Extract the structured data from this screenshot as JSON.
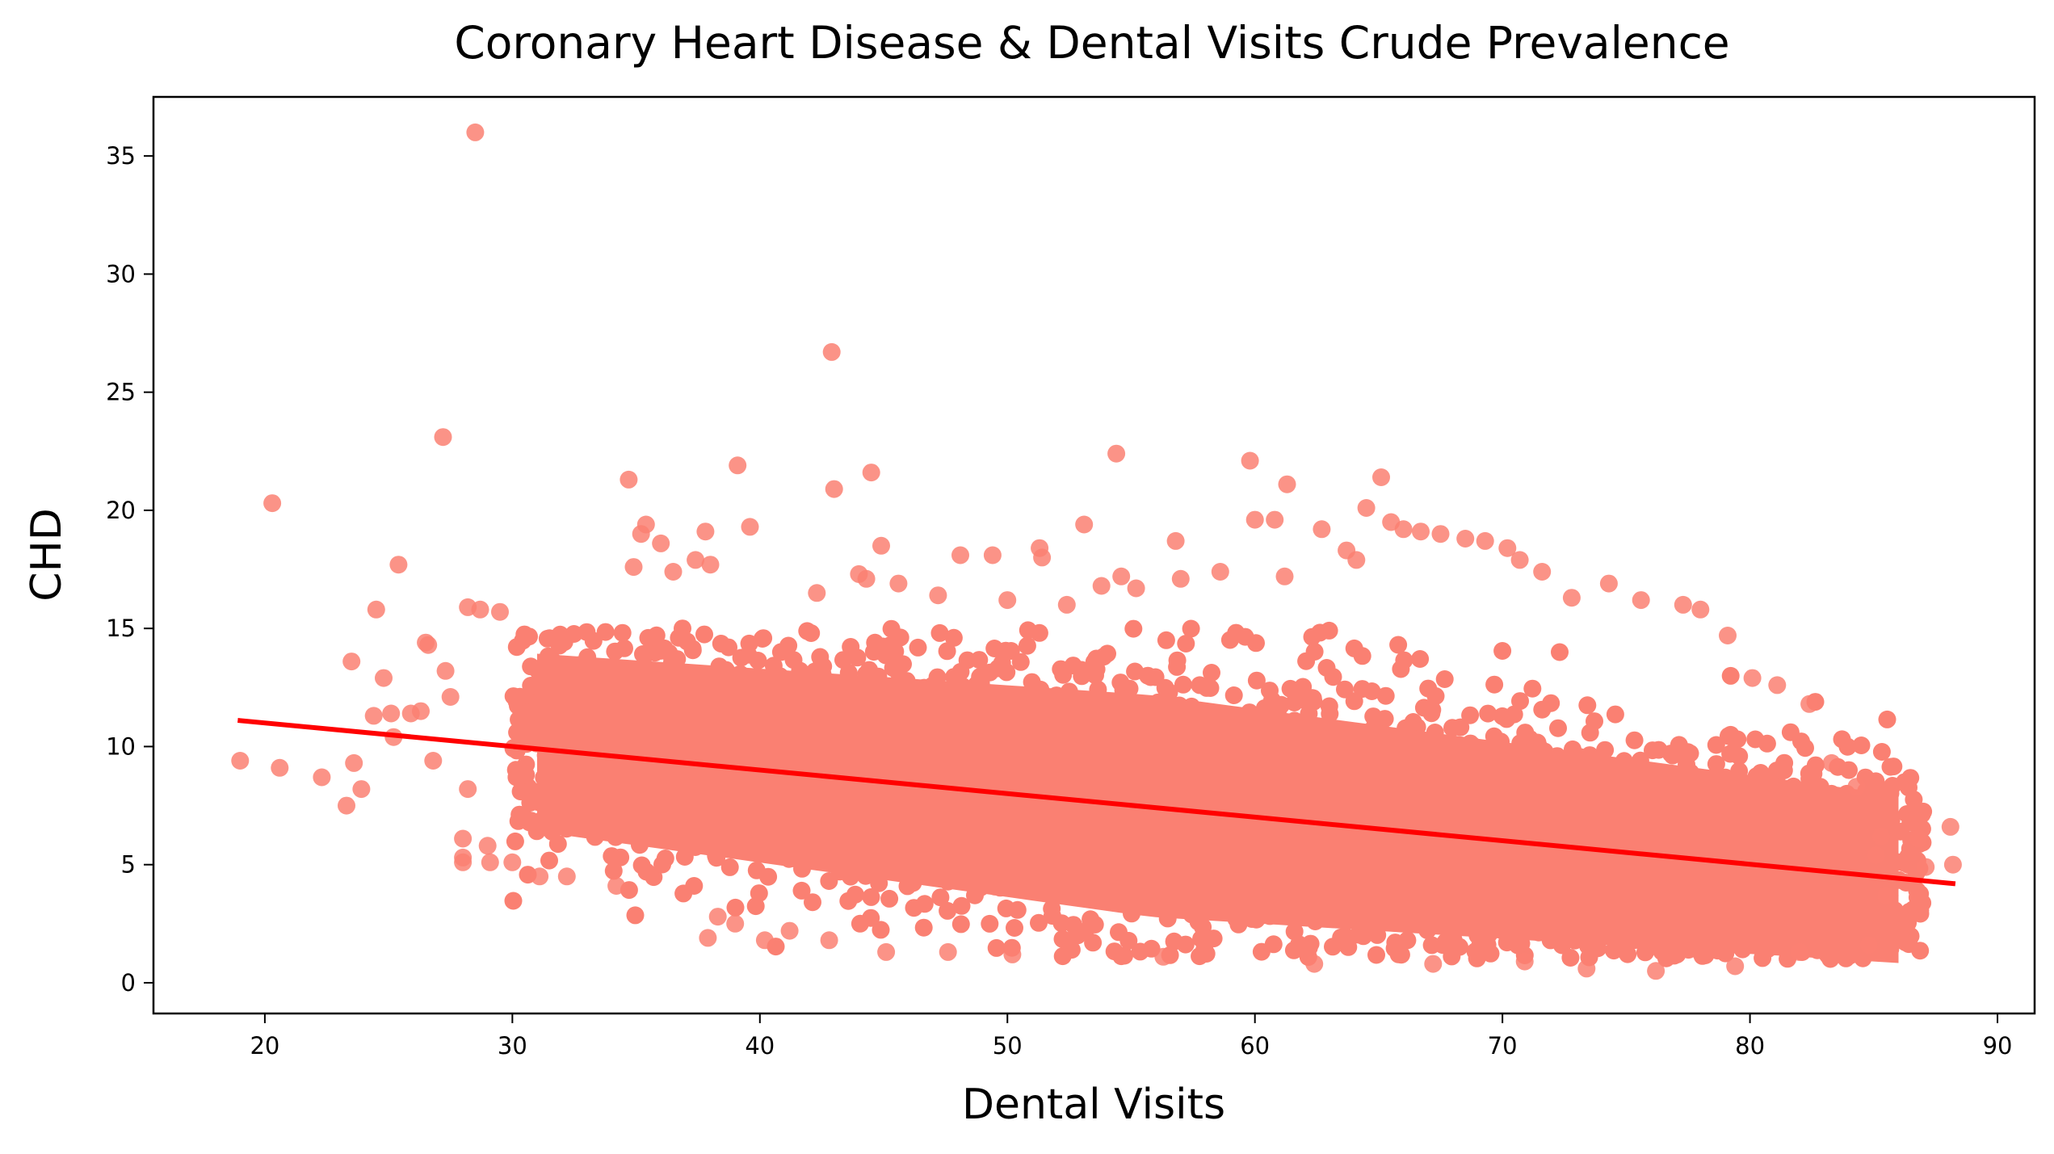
{
  "chart_data": {
    "type": "scatter",
    "title": "Coronary Heart Disease & Dental Visits Crude Prevalence",
    "xlabel": "Dental Visits",
    "ylabel": "CHD",
    "xlim": [
      15.5,
      91.5
    ],
    "ylim": [
      -1.3,
      37.5
    ],
    "xticks": [
      20,
      30,
      40,
      50,
      60,
      70,
      80,
      90
    ],
    "yticks": [
      0,
      5,
      10,
      15,
      20,
      25,
      30,
      35
    ],
    "grid": false,
    "legend": "none",
    "point_color": "#FA8072",
    "line_color": "#FF0000",
    "regression_line": {
      "x": [
        19.0,
        88.2
      ],
      "y": [
        11.1,
        4.2
      ]
    },
    "dense_cloud": {
      "x_range": [
        30,
        87
      ],
      "y_center_at_x30": 10.5,
      "y_center_at_x87": 4.5,
      "y_low": 1.0,
      "y_high": 15.0
    },
    "outliers": [
      [
        19.0,
        9.4
      ],
      [
        20.3,
        20.3
      ],
      [
        20.6,
        9.1
      ],
      [
        22.3,
        8.7
      ],
      [
        23.3,
        7.5
      ],
      [
        23.5,
        13.6
      ],
      [
        23.6,
        9.3
      ],
      [
        23.9,
        8.2
      ],
      [
        24.4,
        11.3
      ],
      [
        24.5,
        15.8
      ],
      [
        24.8,
        12.9
      ],
      [
        25.1,
        11.4
      ],
      [
        25.2,
        10.4
      ],
      [
        25.4,
        17.7
      ],
      [
        25.9,
        11.4
      ],
      [
        26.3,
        11.5
      ],
      [
        26.5,
        14.4
      ],
      [
        26.6,
        14.3
      ],
      [
        26.8,
        9.4
      ],
      [
        27.2,
        23.1
      ],
      [
        27.3,
        13.2
      ],
      [
        27.5,
        12.1
      ],
      [
        28.0,
        5.3
      ],
      [
        28.0,
        6.1
      ],
      [
        28.0,
        5.1
      ],
      [
        28.2,
        15.9
      ],
      [
        28.2,
        8.2
      ],
      [
        28.5,
        36.0
      ],
      [
        28.7,
        15.8
      ],
      [
        29.0,
        5.8
      ],
      [
        29.1,
        5.1
      ],
      [
        29.5,
        15.7
      ],
      [
        30.0,
        5.1
      ],
      [
        31.1,
        4.5
      ],
      [
        32.2,
        4.5
      ],
      [
        34.2,
        4.1
      ],
      [
        34.7,
        21.3
      ],
      [
        34.9,
        17.6
      ],
      [
        35.2,
        19.0
      ],
      [
        35.4,
        19.4
      ],
      [
        36.0,
        18.6
      ],
      [
        36.5,
        17.4
      ],
      [
        37.4,
        17.9
      ],
      [
        37.8,
        19.1
      ],
      [
        38.0,
        17.7
      ],
      [
        37.9,
        1.9
      ],
      [
        38.3,
        2.8
      ],
      [
        39.1,
        21.9
      ],
      [
        39.0,
        2.5
      ],
      [
        39.6,
        19.3
      ],
      [
        40.2,
        1.8
      ],
      [
        41.2,
        2.2
      ],
      [
        42.3,
        16.5
      ],
      [
        42.8,
        1.8
      ],
      [
        42.9,
        26.7
      ],
      [
        43.0,
        20.9
      ],
      [
        44.0,
        17.3
      ],
      [
        44.3,
        17.1
      ],
      [
        44.5,
        21.6
      ],
      [
        44.9,
        18.5
      ],
      [
        45.6,
        16.9
      ],
      [
        47.2,
        16.4
      ],
      [
        48.1,
        18.1
      ],
      [
        49.4,
        18.1
      ],
      [
        50.0,
        16.2
      ],
      [
        51.3,
        18.4
      ],
      [
        51.4,
        18.0
      ],
      [
        52.4,
        16.0
      ],
      [
        53.1,
        19.4
      ],
      [
        53.8,
        16.8
      ],
      [
        54.4,
        22.4
      ],
      [
        54.6,
        17.2
      ],
      [
        55.2,
        16.7
      ],
      [
        56.8,
        18.7
      ],
      [
        57.0,
        17.1
      ],
      [
        58.6,
        17.4
      ],
      [
        59.8,
        22.1
      ],
      [
        60.0,
        19.6
      ],
      [
        60.8,
        19.6
      ],
      [
        61.2,
        17.2
      ],
      [
        61.3,
        21.1
      ],
      [
        62.7,
        19.2
      ],
      [
        63.7,
        18.3
      ],
      [
        64.1,
        17.9
      ],
      [
        64.5,
        20.1
      ],
      [
        65.1,
        21.4
      ],
      [
        65.5,
        19.5
      ],
      [
        66.0,
        19.2
      ],
      [
        66.7,
        19.1
      ],
      [
        67.5,
        19.0
      ],
      [
        68.5,
        18.8
      ],
      [
        69.3,
        18.7
      ],
      [
        70.2,
        18.4
      ],
      [
        70.7,
        17.9
      ],
      [
        71.6,
        17.4
      ],
      [
        72.8,
        16.3
      ],
      [
        74.3,
        16.9
      ],
      [
        75.6,
        16.2
      ],
      [
        77.3,
        16.0
      ],
      [
        78.0,
        15.8
      ],
      [
        79.1,
        14.7
      ],
      [
        80.1,
        12.9
      ],
      [
        81.1,
        12.6
      ],
      [
        82.4,
        11.8
      ],
      [
        83.3,
        9.3
      ],
      [
        84.3,
        8.3
      ],
      [
        85.1,
        5.4
      ],
      [
        85.5,
        3.7
      ],
      [
        85.3,
        6.2
      ],
      [
        86.8,
        6.1
      ],
      [
        87.1,
        4.9
      ],
      [
        88.1,
        6.6
      ],
      [
        88.2,
        5.0
      ],
      [
        76.2,
        0.5
      ],
      [
        73.4,
        0.6
      ],
      [
        67.2,
        0.8
      ],
      [
        56.3,
        1.1
      ],
      [
        50.2,
        1.2
      ],
      [
        47.6,
        1.3
      ],
      [
        45.1,
        1.3
      ],
      [
        62.4,
        0.8
      ],
      [
        70.9,
        0.9
      ],
      [
        79.4,
        0.7
      ],
      [
        82.0,
        1.3
      ],
      [
        84.8,
        1.6
      ]
    ]
  }
}
